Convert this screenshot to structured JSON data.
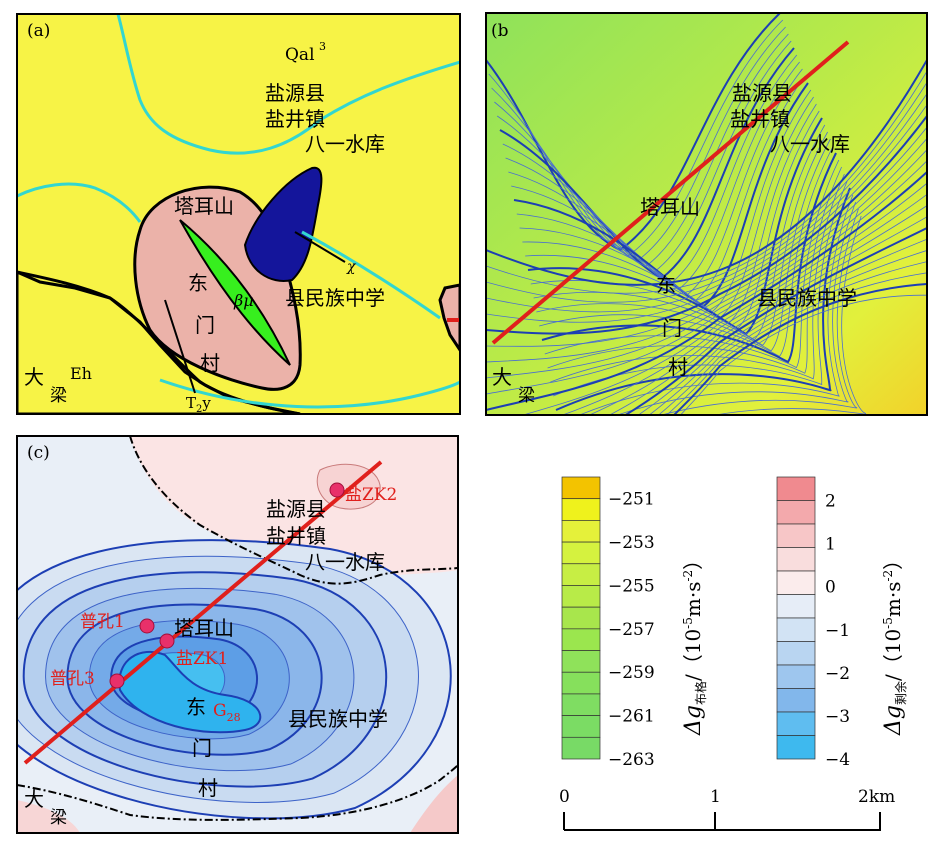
{
  "panels": {
    "a": {
      "tag": "(a)",
      "labels": {
        "qal": "Qal",
        "qal_sup": "3",
        "yanyuan": "盐源县",
        "yanjing": "盐井镇",
        "bayi": "八一水库",
        "taer": "塔耳山",
        "dong": "东",
        "men": "门",
        "cun": "村",
        "bmu": "βμ",
        "chi": "χ",
        "school": "县民族中学",
        "da": "大",
        "liang": "梁",
        "eh": "Eh",
        "t2y_t": "T",
        "t2y_sub": "2",
        "t2y_y": "y"
      },
      "colors": {
        "quaternary": "#f7f346",
        "pink": "#ebb2a9",
        "diorite": "#14159b",
        "gabbro": "#37ef1e",
        "river": "#33d6d0"
      }
    },
    "b": {
      "tag": "(b",
      "labels": {
        "yanyuan": "盐源县",
        "yanjing": "盐井镇",
        "bayi": "八一水库",
        "taer": "塔耳山",
        "dong": "东",
        "men": "门",
        "cun": "村",
        "school": "县民族中学",
        "da": "大",
        "liang": "梁"
      }
    },
    "c": {
      "tag": "(c)",
      "labels": {
        "yanyuan": "盐源县",
        "yanjing": "盐井镇",
        "bayi": "八一水库",
        "taer": "塔耳山",
        "dong": "东",
        "men": "门",
        "cun": "村",
        "school": "县民族中学",
        "da": "大",
        "liang": "梁"
      },
      "wells": {
        "zk2": "盐ZK2",
        "pk1": "普孔1",
        "zk1": "盐ZK1",
        "pk3": "普孔3",
        "g28": "G",
        "g28_sub": "28"
      }
    }
  },
  "legend_bouguer": {
    "ticks": [
      "−251",
      "−253",
      "−255",
      "−257",
      "−259",
      "−261",
      "−263"
    ],
    "title_sym": "Δg",
    "title_sub": "布格",
    "title_unit": "/（10",
    "title_exp1": "-5",
    "title_unit2": "m·s",
    "title_exp2": "-2",
    "title_close": "）",
    "colors": [
      "#f3c300",
      "#eff21c",
      "#e5f13a",
      "#d5f23f",
      "#c7ee44",
      "#b8eb48",
      "#a8e64c",
      "#9be64e",
      "#8fe25a",
      "#86e05c",
      "#7fdd62",
      "#7bdc64",
      "#78da66"
    ]
  },
  "legend_residual": {
    "ticks": [
      "2",
      "1",
      "0",
      "−1",
      "−2",
      "−3",
      "−4"
    ],
    "title_sym": "Δg",
    "title_sub": "剩余",
    "title_unit": "/（10",
    "title_exp1": "-5",
    "title_unit2": "m·s",
    "title_exp2": "-2",
    "title_close": "）",
    "colors": [
      "#f08a8f",
      "#f3a9ac",
      "#f7c6c7",
      "#f9dddd",
      "#fbecec",
      "#e6edf7",
      "#d2e3f4",
      "#b9d5f1",
      "#9ec6ee",
      "#82b7eb",
      "#5fbdf0",
      "#3eb9ee"
    ]
  },
  "scalebar": {
    "t0": "0",
    "t1": "1",
    "t2": "2km"
  }
}
